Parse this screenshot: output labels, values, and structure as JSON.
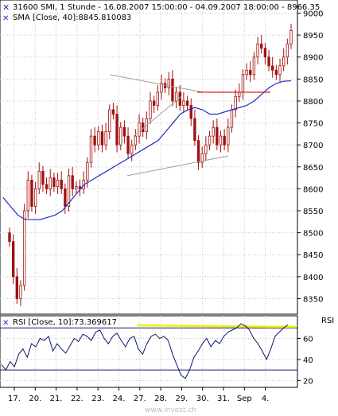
{
  "header": {
    "price_title": "31600  SMI, 1 Stunde - 16.08.2007 15:00:00 - 04.09.2007 18:00:00 - 8966.35",
    "sma_legend": "SMA [Close, 40]:8845.810083",
    "rsi_legend": "RSI [Close, 10]:73.369617",
    "rsi_axis_title": "RSI",
    "watermark": "www.invest.ch"
  },
  "colors": {
    "background": "#ffffff",
    "grid": "#c8c8c8",
    "candle": "#a01010",
    "sma": "#1f2fc0",
    "trendline": "#a0a0a0",
    "resistance": "#e00000",
    "rsi_line": "#0a1a6e",
    "rsi_level": "#1a1a6e",
    "rsi_highlight": "#f0f000",
    "text": "#000000",
    "border": "#000000"
  },
  "chart_data": [
    {
      "type": "candlestick",
      "name": "price",
      "y_ticks": [
        8350,
        8400,
        8450,
        8500,
        8550,
        8600,
        8650,
        8700,
        8750,
        8800,
        8850,
        8900,
        8950,
        9000
      ],
      "ylim": [
        8320,
        9010
      ],
      "x_ticks": [
        "17.",
        "20.",
        "21.",
        "22.",
        "23.",
        "24.",
        "27.",
        "28.",
        "29.",
        "30.",
        "31.",
        "Sep",
        "4."
      ],
      "grid": true,
      "close": [
        8480,
        8400,
        8350,
        8380,
        8550,
        8620,
        8560,
        8600,
        8640,
        8610,
        8600,
        8625,
        8605,
        8620,
        8600,
        8560,
        8630,
        8600,
        8605,
        8600,
        8620,
        8660,
        8720,
        8700,
        8730,
        8700,
        8730,
        8780,
        8770,
        8700,
        8740,
        8720,
        8680,
        8700,
        8720,
        8750,
        8730,
        8760,
        8800,
        8790,
        8820,
        8840,
        8830,
        8850,
        8800,
        8820,
        8790,
        8800,
        8790,
        8760,
        8710,
        8660,
        8680,
        8700,
        8720,
        8740,
        8700,
        8720,
        8700,
        8740,
        8780,
        8810,
        8820,
        8860,
        8870,
        8860,
        8900,
        8930,
        8920,
        8900,
        8880,
        8870,
        8860,
        8880,
        8900,
        8930,
        8960
      ]
    },
    {
      "type": "line",
      "name": "SMA",
      "values": [
        8580,
        8560,
        8540,
        8530,
        8530,
        8530,
        8535,
        8540,
        8550,
        8570,
        8590,
        8610,
        8620,
        8630,
        8640,
        8650,
        8660,
        8670,
        8680,
        8690,
        8700,
        8710,
        8730,
        8750,
        8770,
        8780,
        8785,
        8780,
        8770,
        8770,
        8775,
        8780,
        8785,
        8790,
        8800,
        8815,
        8830,
        8840,
        8845,
        8846
      ]
    },
    {
      "type": "line",
      "name": "trendline-upper",
      "points": [
        [
          0,
          8860
        ],
        [
          1,
          8820
        ]
      ]
    },
    {
      "type": "line",
      "name": "trendline-lower",
      "values": [
        8630,
        8675
      ]
    },
    {
      "type": "line",
      "name": "resistance",
      "value": 8820
    },
    {
      "type": "line",
      "name": "RSI",
      "y_ticks": [
        20,
        40,
        60
      ],
      "ylim": [
        15,
        80
      ],
      "levels": [
        30,
        70
      ],
      "values": [
        35,
        30,
        38,
        33,
        45,
        50,
        42,
        55,
        52,
        60,
        58,
        62,
        48,
        55,
        50,
        46,
        53,
        60,
        57,
        64,
        62,
        58,
        66,
        68,
        60,
        55,
        62,
        65,
        58,
        52,
        60,
        62,
        50,
        45,
        55,
        62,
        64,
        60,
        62,
        58,
        45,
        35,
        25,
        22,
        30,
        42,
        48,
        55,
        60,
        52,
        58,
        55,
        62,
        66,
        68,
        70,
        74,
        72,
        68,
        60,
        55,
        48,
        40,
        50,
        62,
        66,
        70,
        73
      ]
    }
  ]
}
